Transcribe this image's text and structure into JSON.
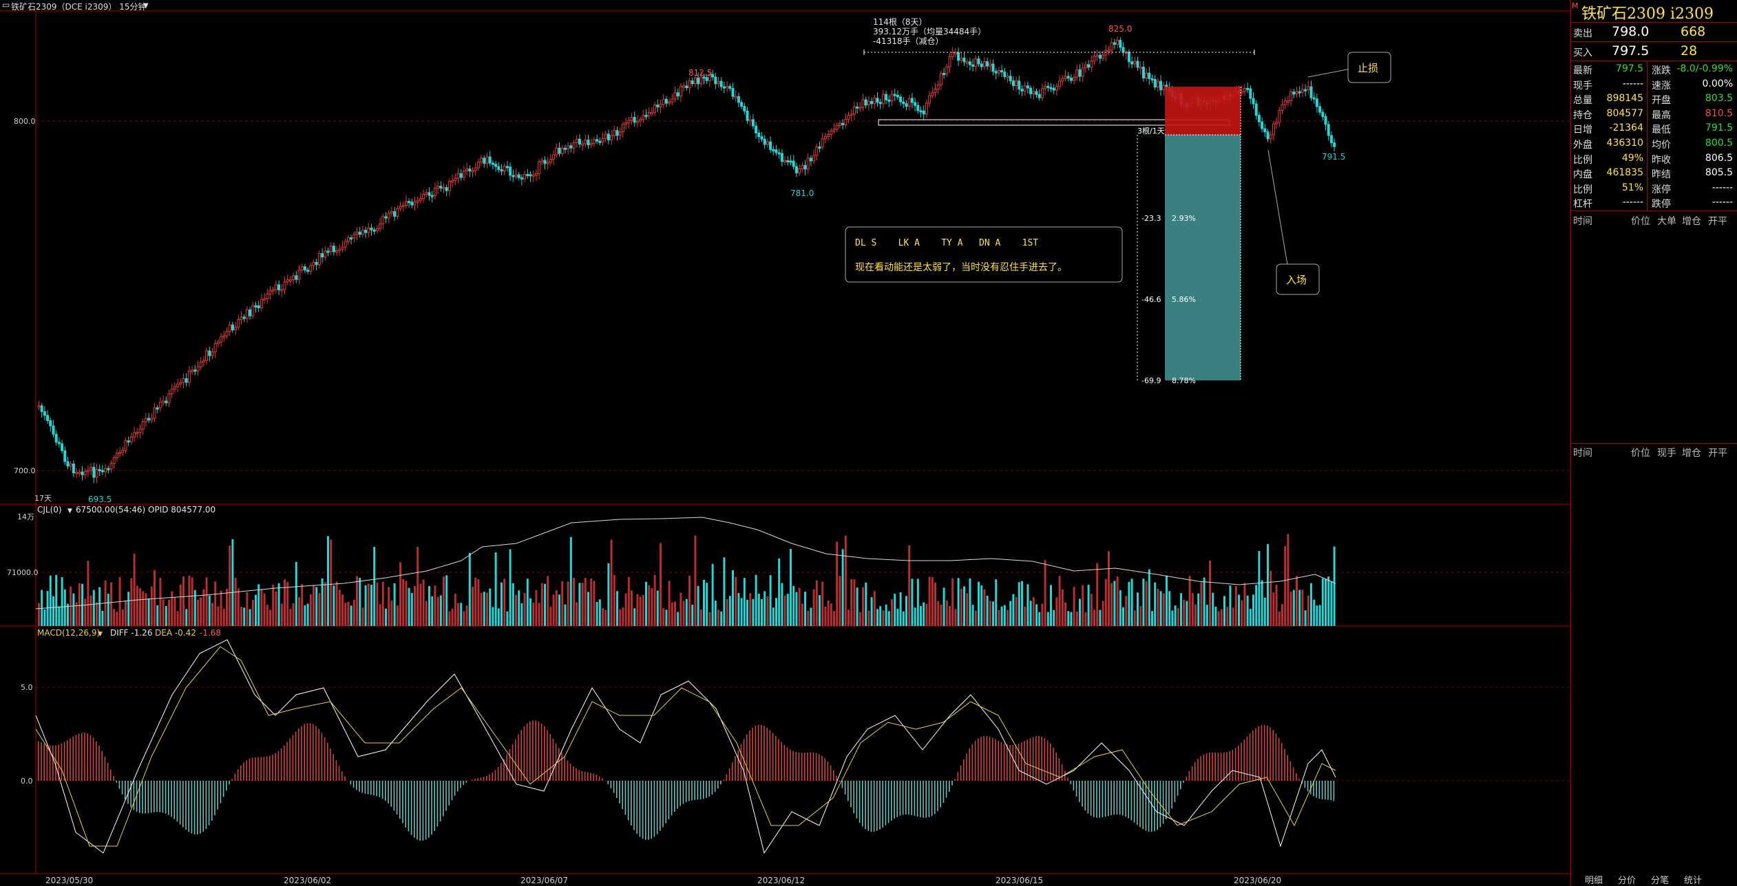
{
  "app": {
    "title": "铁矿石2309（DCE i2309） 15分钟",
    "title_icon": "window-restore-icon"
  },
  "chart": {
    "price_labels": {
      "p800": "800.0",
      "p700": "700.0",
      "p5": "5.0",
      "p0": "0.0",
      "vol14": "14万",
      "vol71": "71000.0"
    },
    "days_label": "17天",
    "markers": {
      "high_812": "812.5",
      "low_781": "781.0",
      "high_825": "825.0",
      "low_791": "791.5",
      "low_693": "693.5"
    },
    "range_info": {
      "line1": "114根（8天）",
      "line2": "393.12万手（均量34484手）",
      "line3": "-41318手（减仓）"
    },
    "trade_box": {
      "bars": "3根/1天",
      "levels": [
        {
          "pts": "-23.3",
          "pct": "2.93%"
        },
        {
          "pts": "-46.6",
          "pct": "5.86%"
        },
        {
          "pts": "-69.9",
          "pct": "8.78%"
        }
      ]
    },
    "note": {
      "line1": "DL S    LK A    TY A   DN A    1ST",
      "line2": "现在看动能还是太弱了，当时没有忍住手进去了。"
    },
    "callouts": {
      "stop": "止损",
      "entry": "入场"
    },
    "volume_header": {
      "name": "CJL(0)",
      "values": "67500.00(54:46)  OPID 804577.00"
    },
    "macd_header": {
      "name": "MACD(12,26,9)",
      "diff": "DIFF -1.26",
      "dea": "DEA -0.42",
      "macd": "-1.68"
    },
    "dates": [
      "2023/05/30",
      "2023/06/02",
      "2023/06/07",
      "2023/06/12",
      "2023/06/15",
      "2023/06/20"
    ]
  },
  "quote": {
    "name": "铁矿石2309  i2309",
    "m_badge": "M",
    "sell": {
      "label": "卖出",
      "price": "798.0",
      "qty": "668"
    },
    "buy": {
      "label": "买入",
      "price": "797.5",
      "qty": "28"
    },
    "rows": [
      {
        "l1": "最新",
        "v1": "797.5",
        "c1": "green",
        "l2": "涨跌",
        "v2": "-8.0/-0.99%",
        "c2": "green"
      },
      {
        "l1": "现手",
        "v1": "------",
        "c1": "white",
        "l2": "速涨",
        "v2": "0.00%",
        "c2": "white"
      },
      {
        "l1": "总量",
        "v1": "898145",
        "c1": "yellow",
        "l2": "开盘",
        "v2": "803.5",
        "c2": "green"
      },
      {
        "l1": "持仓",
        "v1": "804577",
        "c1": "yellow",
        "l2": "最高",
        "v2": "810.5",
        "c2": "red"
      },
      {
        "l1": "日增",
        "v1": "-21364",
        "c1": "yellow",
        "l2": "最低",
        "v2": "791.5",
        "c2": "green"
      },
      {
        "l1": "外盘",
        "v1": "436310",
        "c1": "yellow",
        "l2": "均价",
        "v2": "800.5",
        "c2": "green"
      },
      {
        "l1": "比例",
        "v1": "49%",
        "c1": "yellow",
        "l2": "昨收",
        "v2": "806.5",
        "c2": "white"
      },
      {
        "l1": "内盘",
        "v1": "461835",
        "c1": "yellow",
        "l2": "昨结",
        "v2": "805.5",
        "c2": "white"
      },
      {
        "l1": "比例",
        "v1": "51%",
        "c1": "yellow",
        "l2": "涨停",
        "v2": "------",
        "c2": "white"
      },
      {
        "l1": "杠杆",
        "v1": "------",
        "c1": "white",
        "l2": "跌停",
        "v2": "------",
        "c2": "white"
      }
    ],
    "ticks_header": [
      "时间",
      "价位",
      "大单",
      "增仓",
      "开平"
    ],
    "ticks_header2": [
      "时间",
      "价位",
      "现手",
      "增仓",
      "开平"
    ],
    "tabs": [
      "明细",
      "分价",
      "分笔",
      "统计"
    ]
  },
  "colors": {
    "up": "#e23a3a",
    "down": "#2ad4d4",
    "panel": "#b00000"
  }
}
